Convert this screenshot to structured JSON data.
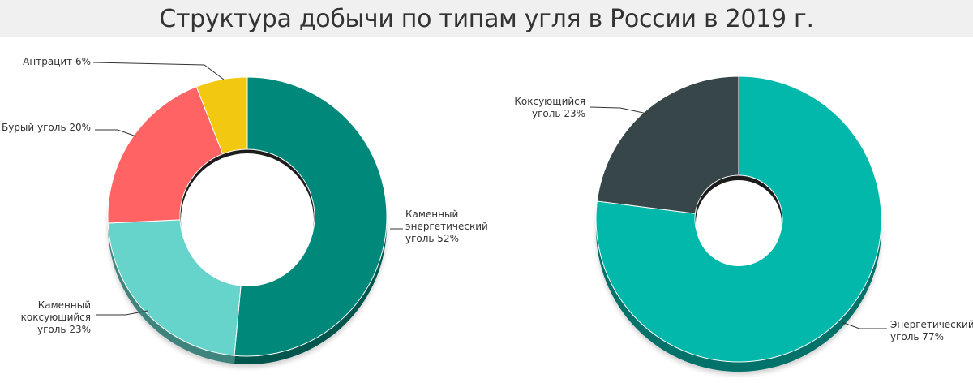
{
  "title": "Структура добычи по типам угля в России в 2019 г.",
  "chart_data": [
    {
      "type": "pie",
      "variant": "donut",
      "start_angle_deg": 0,
      "slices": [
        {
          "label": "Каменный энергетический уголь 52%",
          "lines": [
            "Каменный",
            "энергетический",
            "уголь 52%"
          ],
          "value": 52,
          "color": "#00897b"
        },
        {
          "label": "Каменный коксующийся уголь 23%",
          "lines": [
            "Каменный",
            "коксующийся",
            "уголь 23%"
          ],
          "value": 23,
          "color": "#66d4ca"
        },
        {
          "label": "Бурый уголь 20%",
          "lines": [
            "Бурый уголь 20%"
          ],
          "value": 20,
          "color": "#ff6363"
        },
        {
          "label": "Антрацит 6%",
          "lines": [
            "Антрацит 6%"
          ],
          "value": 6,
          "color": "#f2c811"
        }
      ]
    },
    {
      "type": "pie",
      "variant": "donut",
      "start_angle_deg": 0,
      "slices": [
        {
          "label": "Энергетический уголь 77%",
          "lines": [
            "Энергетический",
            "уголь 77%"
          ],
          "value": 77,
          "color": "#02b8ab"
        },
        {
          "label": "Коксующийся уголь 23%",
          "lines": [
            "Коксующийся",
            "уголь 23%"
          ],
          "value": 23,
          "color": "#374649"
        }
      ]
    }
  ]
}
